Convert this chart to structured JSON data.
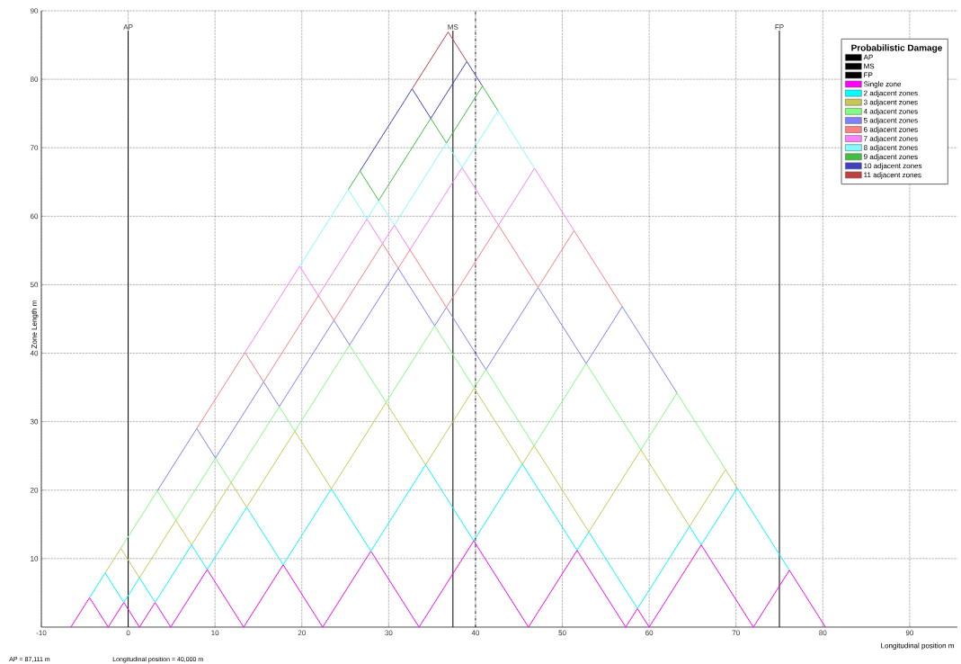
{
  "chart_data": {
    "type": "line",
    "xlabel": "Longitudinal position  m",
    "ylabel": "Zone Length  m",
    "legend_title": "Probabilistic Damage",
    "annotations": [
      "AP =  87,111 m",
      "Longitudinal position =  40,000 m"
    ],
    "xlim": [
      -10,
      95.5
    ],
    "ylim": [
      0,
      90
    ],
    "xticks": [
      -10,
      0,
      10,
      20,
      30,
      40,
      50,
      60,
      70,
      80,
      90
    ],
    "yticks": [
      10,
      20,
      30,
      40,
      50,
      60,
      70,
      80,
      90
    ],
    "grid": true,
    "legend": "top right",
    "marker": "none",
    "line_style": "solid",
    "ref_lines": [
      {
        "axis": "x",
        "value": 40,
        "line_style": "dashed",
        "color": "#000000"
      }
    ],
    "series": [
      {
        "name": "AP",
        "color": "#000000",
        "x": [
          0,
          0
        ],
        "values": [
          0,
          87.1
        ]
      },
      {
        "name": "MS",
        "color": "#000000",
        "x": [
          37.4,
          37.4
        ],
        "values": [
          0,
          87.1
        ]
      },
      {
        "name": "FP",
        "color": "#000000",
        "x": [
          75.0,
          75.0
        ],
        "values": [
          0,
          87.1
        ]
      },
      {
        "name": "Single zone",
        "color": "#ff00ff",
        "x": [
          -6.6,
          -4.45,
          -2.3,
          -0.5,
          1.3,
          3.1,
          4.9,
          9.1,
          13.3,
          17.85,
          22.4,
          27.95,
          33.5,
          39.8,
          46.1,
          51.7,
          57.3,
          58.65,
          60.0,
          66.0,
          72.0,
          76.15,
          80.3
        ],
        "values": [
          0,
          4.3,
          0,
          3.6,
          0,
          3.6,
          0,
          8.4,
          0,
          9.1,
          0,
          11.1,
          0,
          12.6,
          0,
          11.2,
          0,
          2.7,
          0,
          12.0,
          0,
          8.3,
          0
        ]
      },
      {
        "name": "2 adjacent zones",
        "color": "#00ffff",
        "x": [
          -4.45,
          -2.65,
          -0.5,
          1.3,
          3.1,
          7.3,
          9.1,
          13.65,
          17.85,
          23.4,
          27.95,
          34.25,
          39.8,
          45.4,
          51.7,
          53.05,
          58.65,
          64.65,
          66.0,
          70.15,
          76.15
        ],
        "values": [
          4.3,
          7.9,
          3.6,
          7.2,
          3.6,
          12.0,
          8.4,
          17.5,
          9.1,
          20.2,
          11.1,
          23.7,
          12.6,
          23.8,
          11.2,
          13.9,
          2.7,
          14.7,
          12.0,
          20.3,
          8.3
        ]
      },
      {
        "name": "3 adjacent zones",
        "color": "#c8c850",
        "x": [
          -2.65,
          -0.85,
          1.3,
          5.5,
          7.3,
          11.85,
          13.65,
          19.2,
          23.4,
          29.7,
          34.25,
          39.85,
          45.4,
          46.75,
          53.05,
          59.05,
          64.65,
          68.8,
          70.15
        ],
        "values": [
          7.9,
          11.5,
          7.2,
          15.6,
          12.0,
          21.1,
          17.5,
          28.6,
          20.2,
          32.8,
          23.7,
          34.9,
          23.8,
          26.5,
          13.9,
          25.9,
          14.7,
          23.0,
          20.3
        ]
      },
      {
        "name": "4 adjacent zones",
        "color": "#80ff80",
        "x": [
          -0.85,
          3.35,
          5.5,
          10.05,
          11.85,
          17.4,
          19.2,
          25.5,
          29.7,
          35.3,
          39.85,
          41.2,
          46.75,
          52.75,
          59.05,
          63.2,
          68.8
        ],
        "values": [
          11.5,
          19.9,
          15.6,
          24.7,
          21.1,
          32.2,
          28.6,
          41.2,
          32.8,
          44.0,
          34.9,
          37.6,
          26.5,
          38.5,
          25.9,
          34.2,
          23.0
        ]
      },
      {
        "name": "5 adjacent zones",
        "color": "#8080ff",
        "x": [
          3.35,
          7.9,
          10.05,
          15.6,
          17.4,
          23.7,
          25.5,
          31.1,
          35.3,
          36.65,
          41.2,
          47.2,
          52.75,
          56.9,
          63.2
        ],
        "values": [
          19.9,
          29.0,
          24.7,
          35.8,
          32.2,
          44.8,
          41.2,
          52.4,
          44.0,
          46.7,
          37.6,
          49.6,
          38.5,
          46.8,
          34.2
        ]
      },
      {
        "name": "6 adjacent zones",
        "color": "#ff8080",
        "x": [
          7.9,
          13.45,
          15.6,
          21.9,
          23.7,
          29.3,
          31.1,
          32.45,
          36.65,
          42.65,
          47.2,
          51.35,
          56.9
        ],
        "values": [
          29.0,
          40.1,
          35.8,
          48.4,
          44.8,
          56.0,
          52.4,
          55.1,
          46.7,
          58.7,
          49.6,
          57.9,
          46.8
        ]
      },
      {
        "name": "7 adjacent zones",
        "color": "#ff80ff",
        "x": [
          13.45,
          19.75,
          21.9,
          27.5,
          29.3,
          30.65,
          32.45,
          38.45,
          42.65,
          46.8,
          51.35
        ],
        "values": [
          40.1,
          52.7,
          48.4,
          59.6,
          56.0,
          58.7,
          55.1,
          67.1,
          58.7,
          67.0,
          57.9
        ]
      },
      {
        "name": "8 adjacent zones",
        "color": "#80ffff",
        "x": [
          19.75,
          25.35,
          27.5,
          28.85,
          30.65,
          36.65,
          38.45,
          42.6,
          46.8
        ],
        "values": [
          52.7,
          63.9,
          59.6,
          62.3,
          58.7,
          70.7,
          67.1,
          75.4,
          67.0
        ]
      },
      {
        "name": "9 adjacent zones",
        "color": "#40c040",
        "x": [
          25.35,
          26.7,
          28.85,
          34.85,
          36.65,
          40.8,
          42.6
        ],
        "values": [
          63.9,
          66.6,
          62.3,
          74.3,
          70.7,
          79.0,
          75.4
        ]
      },
      {
        "name": "10 adjacent zones",
        "color": "#4040c0",
        "x": [
          26.7,
          32.7,
          34.85,
          39.0,
          40.8
        ],
        "values": [
          66.6,
          78.6,
          74.3,
          82.6,
          79.0
        ]
      },
      {
        "name": "11 adjacent zones",
        "color": "#c04040",
        "x": [
          32.7,
          36.85,
          39.0
        ],
        "values": [
          78.6,
          86.9,
          82.6
        ]
      }
    ]
  }
}
